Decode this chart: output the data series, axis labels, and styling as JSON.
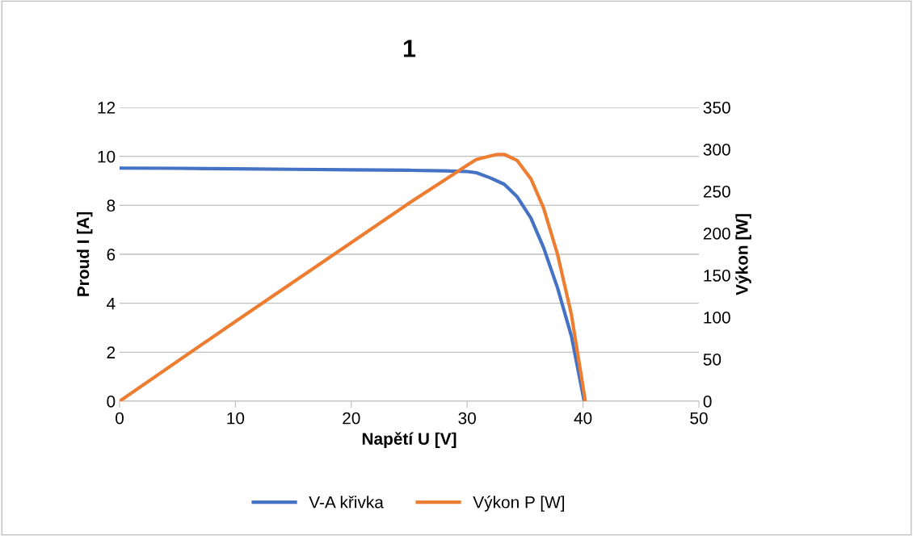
{
  "chart_data": {
    "type": "line",
    "title": "1",
    "xlabel": "Napětí U [V]",
    "ylabel": "Proud I [A]",
    "y2label": "Výkon [W]",
    "xlim": [
      0,
      50
    ],
    "xticks": [
      0,
      10,
      20,
      30,
      40,
      50
    ],
    "ylim": [
      0,
      12
    ],
    "yticks": [
      0,
      2,
      4,
      6,
      8,
      10,
      12
    ],
    "y2lim": [
      0,
      350
    ],
    "y2ticks": [
      0,
      50,
      100,
      150,
      200,
      250,
      300,
      350
    ],
    "grid": "y",
    "legend": "bottom",
    "marker": "none",
    "line_style": "solid",
    "series": [
      {
        "name": "V-A křivka",
        "color": "#4472c4",
        "x": [
          0,
          5,
          10,
          15,
          20,
          25,
          28,
          30,
          30.8,
          32,
          33.2,
          34.3,
          35.5,
          36.6,
          37.8,
          39,
          40.1
        ],
        "values": [
          9.52,
          9.51,
          9.49,
          9.47,
          9.45,
          9.43,
          9.41,
          9.38,
          9.33,
          9.12,
          8.86,
          8.36,
          7.48,
          6.27,
          4.63,
          2.65,
          0
        ]
      },
      {
        "name": "Výkon P [W]",
        "color": "#ed7d31",
        "axis": "y2",
        "x": [
          0,
          10,
          20,
          25,
          28,
          30,
          30.8,
          32,
          32.6,
          33.2,
          34.3,
          35.5,
          36.6,
          37.8,
          39,
          40.2
        ],
        "values": [
          0,
          95,
          189,
          236,
          263,
          281,
          288,
          292,
          294,
          294,
          287,
          265,
          230,
          175,
          103,
          0
        ]
      }
    ]
  }
}
